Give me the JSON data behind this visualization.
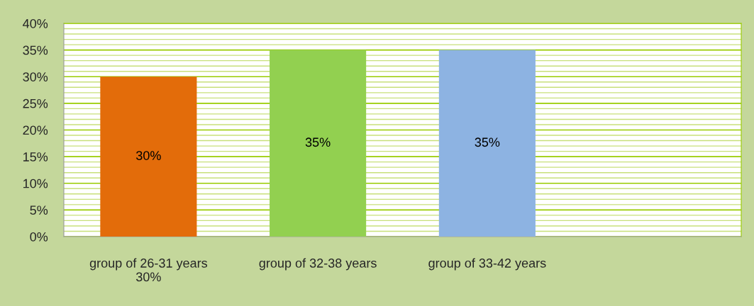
{
  "chart_data": {
    "type": "bar",
    "categories": [
      "group of 26-31 years\n30%",
      "group of 32-38 years",
      "group of 33-42 years",
      null
    ],
    "values": [
      30,
      35,
      35,
      null
    ],
    "colors": [
      "#e36c0a",
      "#92d050",
      "#8db3e2",
      "#8db3e2"
    ],
    "value_labels": [
      "30%",
      "35%",
      "35%",
      null
    ],
    "ylim": [
      0,
      40
    ],
    "yticks": [
      {
        "value": 0,
        "label": "0%"
      },
      {
        "value": 1,
        "label": null
      },
      {
        "value": 2,
        "label": null
      },
      {
        "value": 3,
        "label": null
      },
      {
        "value": 4,
        "label": null
      },
      {
        "value": 5,
        "label": "5%"
      },
      {
        "value": 6,
        "label": null
      },
      {
        "value": 7,
        "label": null
      },
      {
        "value": 8,
        "label": null
      },
      {
        "value": 9,
        "label": null
      },
      {
        "value": 10,
        "label": "10%"
      },
      {
        "value": 11,
        "label": null
      },
      {
        "value": 12,
        "label": null
      },
      {
        "value": 13,
        "label": null
      },
      {
        "value": 14,
        "label": null
      },
      {
        "value": 15,
        "label": "15%"
      },
      {
        "value": 16,
        "label": null
      },
      {
        "value": 17,
        "label": null
      },
      {
        "value": 18,
        "label": null
      },
      {
        "value": 19,
        "label": null
      },
      {
        "value": 20,
        "label": "20%"
      },
      {
        "value": 21,
        "label": null
      },
      {
        "value": 22,
        "label": null
      },
      {
        "value": 23,
        "label": null
      },
      {
        "value": 24,
        "label": null
      },
      {
        "value": 25,
        "label": "25%"
      },
      {
        "value": 26,
        "label": null
      },
      {
        "value": 27,
        "label": null
      },
      {
        "value": 28,
        "label": null
      },
      {
        "value": 29,
        "label": null
      },
      {
        "value": 30,
        "label": "30%"
      },
      {
        "value": 31,
        "label": null
      },
      {
        "value": 32,
        "label": null
      },
      {
        "value": 33,
        "label": null
      },
      {
        "value": 34,
        "label": null
      },
      {
        "value": 35,
        "label": "35%"
      },
      {
        "value": 36,
        "label": null
      },
      {
        "value": 37,
        "label": null
      },
      {
        "value": 38,
        "label": null
      },
      {
        "value": 39,
        "label": null
      },
      {
        "value": 40,
        "label": "40%"
      }
    ],
    "grid": "y"
  }
}
